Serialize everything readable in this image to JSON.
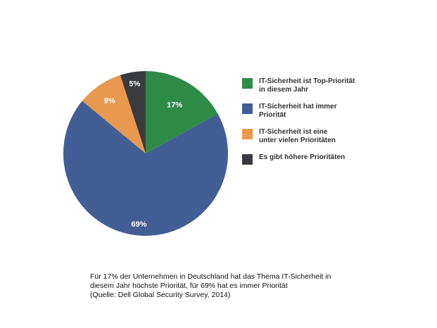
{
  "chart_data": {
    "type": "pie",
    "slices": [
      {
        "label": "IT-Sicherheit ist Top-Priorität\nin diesem Jahr",
        "value": 17,
        "value_label": "17%",
        "color": "#2e8b47"
      },
      {
        "label": "IT-Sicherheit hat immer\nPriorität",
        "value": 69,
        "value_label": "69%",
        "color": "#425e95"
      },
      {
        "label": "IT-Sicherheit ist eine\nunter vielen Prioritäten",
        "value": 9,
        "value_label": "9%",
        "color": "#e8994e"
      },
      {
        "label": "Es gibt höhere Prioritäten",
        "value": 5,
        "value_label": "5%",
        "color": "#3a3b40"
      }
    ],
    "legend_position": "right",
    "start": "top",
    "direction": "clockwise"
  },
  "caption": {
    "line1": "Für 17% der Unternehmen in Deutschland hat das Thema IT-Sicherheit in",
    "line2": "diesem Jahr höchste Priorität, für 69% hat es immer Priorität",
    "line3": "(Quelle: Dell Global Security Survey, 2014)"
  }
}
